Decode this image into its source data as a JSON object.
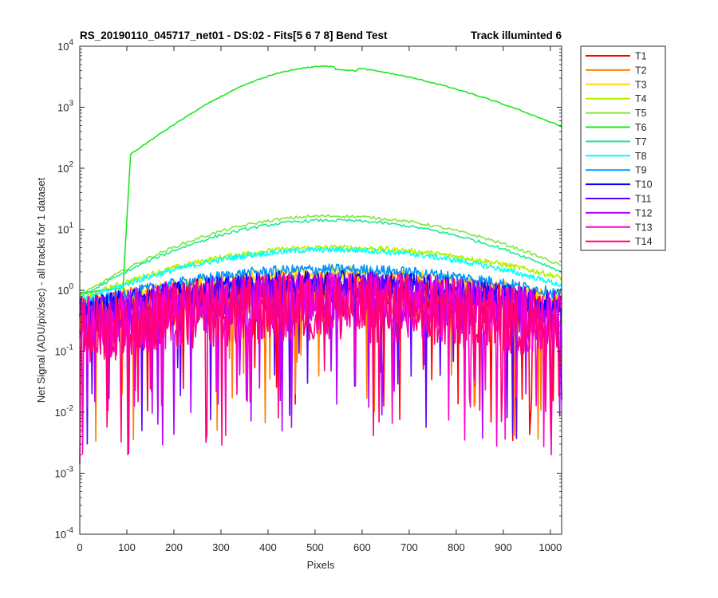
{
  "chart_data": {
    "type": "line",
    "title_left": "RS_20190110_045717_net01 - DS:02 - Fits[5  6  7  8]   Bend Test",
    "title_right": "Track illuminted 6",
    "xlabel": "Pixels",
    "ylabel": "Net Signal (ADU/pix/sec) - all tracks for 1 dataset",
    "xlim": [
      0,
      1024
    ],
    "ylim_exponents": [
      -4,
      4
    ],
    "y_scale": "log",
    "x_ticks": [
      "0",
      "100",
      "200",
      "300",
      "400",
      "500",
      "600",
      "700",
      "800",
      "900",
      "1000"
    ],
    "x_tick_values": [
      0,
      100,
      200,
      300,
      400,
      500,
      600,
      700,
      800,
      900,
      1000
    ],
    "y_tick_exponents": [
      "-4",
      "-3",
      "-2",
      "-1",
      "0",
      "1",
      "2",
      "3",
      "4"
    ],
    "y_tick_base": "10",
    "grid": false,
    "legend_position": "outside-right",
    "series": [
      {
        "name": "T1",
        "color": "#ff0000",
        "peak": 0.85,
        "start": 0.3,
        "end": 0.35,
        "noise": 1.3
      },
      {
        "name": "T2",
        "color": "#ff7f00",
        "peak": 0.9,
        "start": 0.35,
        "end": 0.4,
        "noise": 1.2
      },
      {
        "name": "T3",
        "color": "#ffd700",
        "peak": 1.9,
        "start": 0.55,
        "end": 0.75,
        "noise": 0.35
      },
      {
        "name": "T4",
        "color": "#b4f000",
        "peak": 5.0,
        "start": 0.7,
        "end": 1.6,
        "noise": 0.15
      },
      {
        "name": "T5",
        "color": "#7de83a",
        "peak": 16.5,
        "start": 0.8,
        "end": 2.5,
        "noise": 0.08
      },
      {
        "name": "T6",
        "color": "#1ee81e",
        "peak": 4700,
        "start": 0.9,
        "end": 480,
        "noise": 0.03
      },
      {
        "name": "T7",
        "color": "#1ee896",
        "peak": 14.0,
        "start": 0.75,
        "end": 2.0,
        "noise": 0.08
      },
      {
        "name": "T8",
        "color": "#00ffff",
        "peak": 4.6,
        "start": 0.65,
        "end": 1.2,
        "noise": 0.15
      },
      {
        "name": "T9",
        "color": "#0096ff",
        "peak": 2.2,
        "start": 0.55,
        "end": 0.85,
        "noise": 0.3
      },
      {
        "name": "T10",
        "color": "#0000ff",
        "peak": 1.3,
        "start": 0.45,
        "end": 0.55,
        "noise": 0.7
      },
      {
        "name": "T11",
        "color": "#5a00ff",
        "peak": 0.95,
        "start": 0.35,
        "end": 0.45,
        "noise": 1.1
      },
      {
        "name": "T12",
        "color": "#b400ff",
        "peak": 0.7,
        "start": 0.25,
        "end": 0.3,
        "noise": 1.6
      },
      {
        "name": "T13",
        "color": "#ff00c8",
        "peak": 0.55,
        "start": 0.2,
        "end": 0.25,
        "noise": 1.9
      },
      {
        "name": "T14",
        "color": "#ff0078",
        "peak": 0.5,
        "start": 0.2,
        "end": 0.22,
        "noise": 2.0
      }
    ]
  }
}
